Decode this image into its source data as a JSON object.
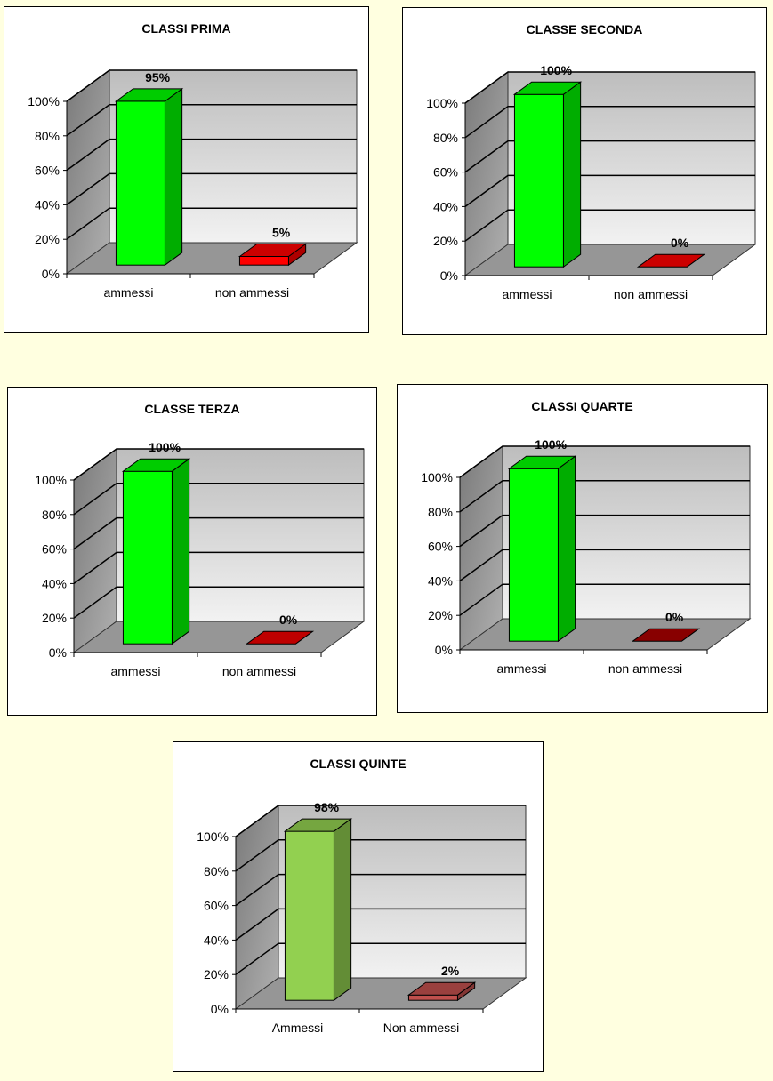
{
  "chart_data": [
    {
      "type": "bar",
      "title": "CLASSI PRIMA",
      "categories": [
        "ammessi",
        "non ammessi"
      ],
      "values": [
        95,
        5
      ],
      "data_labels": [
        "95%",
        "5%"
      ],
      "ylim": [
        0,
        100
      ],
      "yticks": [
        "0%",
        "20%",
        "40%",
        "60%",
        "80%",
        "100%"
      ],
      "grid": true,
      "colors": [
        "#00ff00",
        "#ff0000"
      ]
    },
    {
      "type": "bar",
      "title": "CLASSE SECONDA",
      "categories": [
        "ammessi",
        "non ammessi"
      ],
      "values": [
        100,
        0
      ],
      "data_labels": [
        "100%",
        "0%"
      ],
      "ylim": [
        0,
        100
      ],
      "yticks": [
        "0%",
        "20%",
        "40%",
        "60%",
        "80%",
        "100%"
      ],
      "grid": true,
      "colors": [
        "#00ff00",
        "#ff0000"
      ]
    },
    {
      "type": "bar",
      "title": "CLASSE TERZA",
      "categories": [
        "ammessi",
        "non ammessi"
      ],
      "values": [
        100,
        0
      ],
      "data_labels": [
        "100%",
        "0%"
      ],
      "ylim": [
        0,
        100
      ],
      "yticks": [
        "0%",
        "20%",
        "40%",
        "60%",
        "80%",
        "100%"
      ],
      "grid": true,
      "colors": [
        "#00ff00",
        "#ee0000"
      ]
    },
    {
      "type": "bar",
      "title": "CLASSI QUARTE",
      "categories": [
        "ammessi",
        "non ammessi"
      ],
      "values": [
        100,
        0
      ],
      "data_labels": [
        "100%",
        "0%"
      ],
      "ylim": [
        0,
        100
      ],
      "yticks": [
        "0%",
        "20%",
        "40%",
        "60%",
        "80%",
        "100%"
      ],
      "grid": true,
      "colors": [
        "#00ff00",
        "#aa0000"
      ]
    },
    {
      "type": "bar",
      "title": "CLASSI QUINTE",
      "categories": [
        "Ammessi",
        "Non ammessi"
      ],
      "values": [
        98,
        2
      ],
      "data_labels": [
        "98%",
        "2%"
      ],
      "ylim": [
        0,
        100
      ],
      "yticks": [
        "0%",
        "20%",
        "40%",
        "60%",
        "80%",
        "100%"
      ],
      "grid": true,
      "colors": [
        "#92d050",
        "#c0504d"
      ]
    }
  ]
}
